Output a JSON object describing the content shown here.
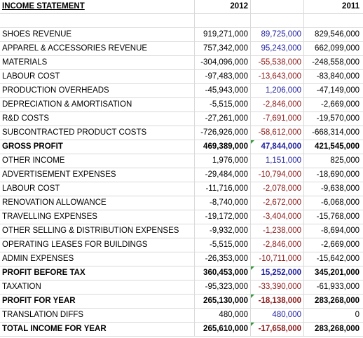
{
  "header": {
    "label": "INCOME STATEMENT",
    "col_2012": "2012",
    "col_delta": "",
    "col_2011": "2011"
  },
  "rows": [
    {
      "label": "SHOES REVENUE",
      "v2012": "919,271,000",
      "delta": "89,725,000",
      "v2011": "829,546,000",
      "delta_sign": "pos",
      "bold": false,
      "flag": false
    },
    {
      "label": "APPAREL & ACCESSORIES REVENUE",
      "v2012": "757,342,000",
      "delta": "95,243,000",
      "v2011": "662,099,000",
      "delta_sign": "pos",
      "bold": false,
      "flag": false
    },
    {
      "label": "MATERIALS",
      "v2012": "-304,096,000",
      "delta": "-55,538,000",
      "v2011": "-248,558,000",
      "delta_sign": "neg",
      "bold": false,
      "flag": false
    },
    {
      "label": "LABOUR COST",
      "v2012": "-97,483,000",
      "delta": "-13,643,000",
      "v2011": "-83,840,000",
      "delta_sign": "neg",
      "bold": false,
      "flag": false
    },
    {
      "label": "PRODUCTION OVERHEADS",
      "v2012": "-45,943,000",
      "delta": "1,206,000",
      "v2011": "-47,149,000",
      "delta_sign": "pos",
      "bold": false,
      "flag": false
    },
    {
      "label": "DEPRECIATION & AMORTISATION",
      "v2012": "-5,515,000",
      "delta": "-2,846,000",
      "v2011": "-2,669,000",
      "delta_sign": "neg",
      "bold": false,
      "flag": false
    },
    {
      "label": "R&D COSTS",
      "v2012": "-27,261,000",
      "delta": "-7,691,000",
      "v2011": "-19,570,000",
      "delta_sign": "neg",
      "bold": false,
      "flag": false
    },
    {
      "label": "SUBCONTRACTED PRODUCT COSTS",
      "v2012": "-726,926,000",
      "delta": "-58,612,000",
      "v2011": "-668,314,000",
      "delta_sign": "neg",
      "bold": false,
      "flag": false
    },
    {
      "label": "GROSS PROFIT",
      "v2012": "469,389,000",
      "delta": "47,844,000",
      "v2011": "421,545,000",
      "delta_sign": "pos",
      "bold": true,
      "flag": true
    },
    {
      "label": "OTHER INCOME",
      "v2012": "1,976,000",
      "delta": "1,151,000",
      "v2011": "825,000",
      "delta_sign": "pos",
      "bold": false,
      "flag": false
    },
    {
      "label": "ADVERTISEMENT EXPENSES",
      "v2012": "-29,484,000",
      "delta": "-10,794,000",
      "v2011": "-18,690,000",
      "delta_sign": "neg",
      "bold": false,
      "flag": false
    },
    {
      "label": "LABOUR COST",
      "v2012": "-11,716,000",
      "delta": "-2,078,000",
      "v2011": "-9,638,000",
      "delta_sign": "neg",
      "bold": false,
      "flag": false
    },
    {
      "label": "RENOVATION ALLOWANCE",
      "v2012": "-8,740,000",
      "delta": "-2,672,000",
      "v2011": "-6,068,000",
      "delta_sign": "neg",
      "bold": false,
      "flag": false
    },
    {
      "label": "TRAVELLING EXPENSES",
      "v2012": "-19,172,000",
      "delta": "-3,404,000",
      "v2011": "-15,768,000",
      "delta_sign": "neg",
      "bold": false,
      "flag": false
    },
    {
      "label": "OTHER SELLING & DISTRIBUTION EXPENSES",
      "v2012": "-9,932,000",
      "delta": "-1,238,000",
      "v2011": "-8,694,000",
      "delta_sign": "neg",
      "bold": false,
      "flag": false
    },
    {
      "label": "OPERATING LEASES FOR BUILDINGS",
      "v2012": "-5,515,000",
      "delta": "-2,846,000",
      "v2011": "-2,669,000",
      "delta_sign": "neg",
      "bold": false,
      "flag": false
    },
    {
      "label": "ADMIN EXPENSES",
      "v2012": "-26,353,000",
      "delta": "-10,711,000",
      "v2011": "-15,642,000",
      "delta_sign": "neg",
      "bold": false,
      "flag": false
    },
    {
      "label": "PROFIT BEFORE TAX",
      "v2012": "360,453,000",
      "delta": "15,252,000",
      "v2011": "345,201,000",
      "delta_sign": "pos",
      "bold": true,
      "flag": true
    },
    {
      "label": "TAXATION",
      "v2012": "-95,323,000",
      "delta": "-33,390,000",
      "v2011": "-61,933,000",
      "delta_sign": "neg",
      "bold": false,
      "flag": false
    },
    {
      "label": "PROFIT FOR YEAR",
      "v2012": "265,130,000",
      "delta": "-18,138,000",
      "v2011": "283,268,000",
      "delta_sign": "neg",
      "bold": true,
      "flag": true
    },
    {
      "label": "TRANSLATION DIFFS",
      "v2012": "480,000",
      "delta": "480,000",
      "v2011": "0",
      "delta_sign": "pos",
      "bold": false,
      "flag": false
    },
    {
      "label": "TOTAL INCOME FOR YEAR",
      "v2012": "265,610,000",
      "delta": "-17,658,000",
      "v2011": "283,268,000",
      "delta_sign": "neg",
      "bold": true,
      "flag": true
    }
  ],
  "colors": {
    "positive_delta": "#1f1f9e",
    "negative_delta": "#8b1a1a",
    "gridline": "#d9d9d9",
    "flag_marker": "#2e9e3a"
  }
}
